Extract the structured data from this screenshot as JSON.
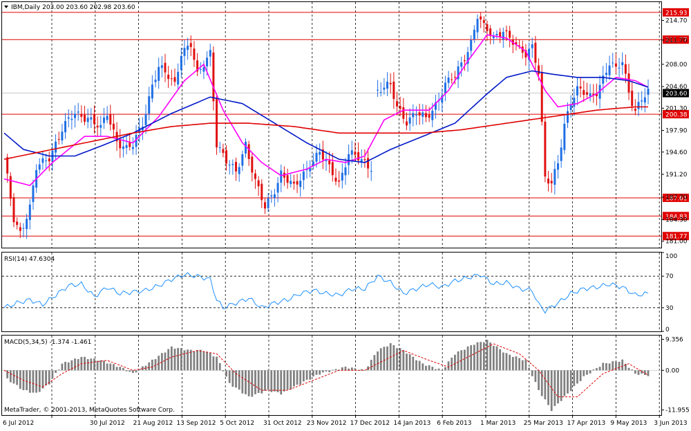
{
  "panels": {
    "price": {
      "header": "IBM,Daily  203.00 203.60 202.98 203.60",
      "range": [
        180.0,
        217.5
      ],
      "ticks": [
        "214.70",
        "211.70",
        "208.00",
        "204.60",
        "201.30",
        "197.90",
        "194.60",
        "191.20",
        "187.70",
        "184.30",
        "181.00"
      ],
      "last_price": "203.60"
    },
    "rsi": {
      "header": "RSI(14) 47.6304",
      "range": [
        0,
        100
      ],
      "ticks": [
        "100",
        "70",
        "30",
        "0"
      ],
      "levels": [
        70,
        30
      ]
    },
    "macd": {
      "header": "MACD(5,34,5) -1.374 -1.461",
      "range": [
        -13.5,
        10.5
      ],
      "ticks": [
        "9.356",
        "0.00",
        "-11.955"
      ]
    }
  },
  "footer": {
    "copyright": "MetaTrader, © 2001-2013, MetaQuotes Software Corp."
  },
  "colors": {
    "bull": "#1f6fe5",
    "bear": "#e01010",
    "ma_fast": "#ff00ff",
    "ma_mid": "#0018c8",
    "ma_slow": "#e00000",
    "level": "#e00000",
    "rsi": "#1e90ff",
    "macd_hist": "#808080",
    "macd_signal": "#e00000",
    "label_bg": "#e00000"
  },
  "chart_data": [
    {
      "type": "candlestick",
      "symbol": "IBM",
      "timeframe": "Daily",
      "header_values": {
        "open": 203.0,
        "high": 203.6,
        "low": 202.98,
        "close": 203.6
      },
      "x_tick_labels": [
        "6 Jul 2012",
        "30 Jul 2012",
        "21 Aug 2012",
        "13 Sep 2012",
        "5 Oct 2012",
        "31 Oct 2012",
        "23 Nov 2012",
        "17 Dec 2012",
        "14 Jan 2013",
        "6 Feb 2013",
        "1 Mar 2013",
        "25 Mar 2013",
        "17 Apr 2013",
        "9 May 2013",
        "3 Jun 2013"
      ],
      "horizontal_levels": [
        "215.93",
        "211.77",
        "200.38",
        "187.61",
        "184.83",
        "181.77"
      ],
      "close_path": [
        [
          0,
          193.5
        ],
        [
          3,
          184.5
        ],
        [
          5,
          182.5
        ],
        [
          8,
          186.0
        ],
        [
          10,
          192.0
        ],
        [
          14,
          194.0
        ],
        [
          18,
          198.0
        ],
        [
          22,
          200.5
        ],
        [
          26,
          200.0
        ],
        [
          30,
          198.0
        ],
        [
          32,
          200.5
        ],
        [
          35,
          196.5
        ],
        [
          38,
          195.0
        ],
        [
          40,
          195.5
        ],
        [
          43,
          199.0
        ],
        [
          46,
          205.0
        ],
        [
          48,
          207.5
        ],
        [
          51,
          206.0
        ],
        [
          53,
          205.0
        ],
        [
          55,
          210.0
        ],
        [
          58,
          211.0
        ],
        [
          60,
          206.0
        ],
        [
          62,
          208.0
        ],
        [
          64,
          210.0
        ],
        [
          66,
          196.0
        ],
        [
          69,
          193.0
        ],
        [
          72,
          191.5
        ],
        [
          75,
          196.0
        ],
        [
          78,
          190.0
        ],
        [
          81,
          186.0
        ],
        [
          84,
          189.0
        ],
        [
          86,
          191.5
        ],
        [
          90,
          189.0
        ],
        [
          92,
          190.5
        ],
        [
          95,
          193.0
        ],
        [
          98,
          194.5
        ],
        [
          101,
          192.0
        ],
        [
          104,
          190.0
        ],
        [
          107,
          194.5
        ],
        [
          110,
          193.5
        ],
        [
          113,
          192.5
        ],
        [
          114,
          192.5
        ],
        [
          116,
          204.0
        ],
        [
          118,
          204.5
        ],
        [
          120,
          204.5
        ],
        [
          122,
          201.5
        ],
        [
          125,
          199.5
        ],
        [
          128,
          200.5
        ],
        [
          131,
          199.5
        ],
        [
          134,
          202.0
        ],
        [
          137,
          205.0
        ],
        [
          140,
          206.0
        ],
        [
          142,
          208.0
        ],
        [
          145,
          211.5
        ],
        [
          147,
          215.5
        ],
        [
          149,
          213.5
        ],
        [
          152,
          212.0
        ],
        [
          155,
          213.5
        ],
        [
          157,
          212.0
        ],
        [
          160,
          210.0
        ],
        [
          162,
          209.5
        ],
        [
          164,
          211.0
        ],
        [
          166,
          207.0
        ],
        [
          168,
          190.5
        ],
        [
          170,
          189.5
        ],
        [
          172,
          193.0
        ],
        [
          174,
          199.0
        ],
        [
          176,
          202.5
        ],
        [
          178,
          204.0
        ],
        [
          180,
          203.5
        ],
        [
          182,
          203.0
        ],
        [
          184,
          204.0
        ],
        [
          186,
          206.0
        ],
        [
          188,
          208.0
        ],
        [
          190,
          207.0
        ],
        [
          192,
          208.5
        ],
        [
          194,
          204.0
        ],
        [
          196,
          201.0
        ],
        [
          198,
          202.5
        ],
        [
          200,
          203.6
        ]
      ],
      "moving_averages": [
        {
          "color": "#ff00ff",
          "path": [
            [
              0,
              190.5
            ],
            [
              8,
              189.5
            ],
            [
              15,
              193.0
            ],
            [
              25,
              197.0
            ],
            [
              32,
              197.0
            ],
            [
              40,
              196.0
            ],
            [
              48,
              200.0
            ],
            [
              56,
              205.5
            ],
            [
              62,
              208.0
            ],
            [
              68,
              201.0
            ],
            [
              74,
              196.0
            ],
            [
              80,
              193.0
            ],
            [
              86,
              191.0
            ],
            [
              94,
              192.0
            ],
            [
              100,
              193.5
            ],
            [
              106,
              193.0
            ],
            [
              112,
              194.0
            ],
            [
              118,
              199.5
            ],
            [
              124,
              201.0
            ],
            [
              132,
              201.0
            ],
            [
              138,
              204.0
            ],
            [
              144,
              208.5
            ],
            [
              150,
              212.5
            ],
            [
              156,
              212.0
            ],
            [
              162,
              210.0
            ],
            [
              168,
              204.0
            ],
            [
              172,
              201.5
            ],
            [
              178,
              202.0
            ],
            [
              184,
              203.5
            ],
            [
              190,
              206.0
            ],
            [
              196,
              205.5
            ],
            [
              200,
              204.5
            ]
          ]
        },
        {
          "color": "#0018c8",
          "path": [
            [
              0,
              197.5
            ],
            [
              6,
              195.0
            ],
            [
              14,
              194.0
            ],
            [
              22,
              194.0
            ],
            [
              30,
              195.5
            ],
            [
              40,
              197.5
            ],
            [
              52,
              200.5
            ],
            [
              64,
              203.0
            ],
            [
              74,
              202.0
            ],
            [
              84,
              199.0
            ],
            [
              94,
              196.0
            ],
            [
              104,
              193.5
            ],
            [
              112,
              193.0
            ],
            [
              120,
              195.0
            ],
            [
              130,
              197.0
            ],
            [
              140,
              199.0
            ],
            [
              150,
              203.5
            ],
            [
              156,
              206.0
            ],
            [
              164,
              207.0
            ],
            [
              170,
              206.5
            ],
            [
              178,
              206.0
            ],
            [
              186,
              206.0
            ],
            [
              194,
              205.5
            ],
            [
              200,
              204.5
            ]
          ]
        },
        {
          "color": "#e00000",
          "path": [
            [
              0,
              193.5
            ],
            [
              10,
              194.5
            ],
            [
              20,
              195.5
            ],
            [
              30,
              196.5
            ],
            [
              40,
              197.5
            ],
            [
              52,
              198.5
            ],
            [
              64,
              199.0
            ],
            [
              76,
              199.0
            ],
            [
              90,
              198.5
            ],
            [
              104,
              197.5
            ],
            [
              118,
              197.5
            ],
            [
              130,
              197.5
            ],
            [
              142,
              198.0
            ],
            [
              156,
              199.0
            ],
            [
              170,
              200.0
            ],
            [
              184,
              201.0
            ],
            [
              196,
              201.5
            ],
            [
              200,
              201.5
            ]
          ]
        }
      ]
    },
    {
      "type": "line",
      "name": "RSI(14)",
      "last_value": 47.6304,
      "ylim": [
        0,
        100
      ],
      "levels": [
        70,
        30
      ],
      "path": [
        [
          0,
          30
        ],
        [
          4,
          36
        ],
        [
          8,
          40
        ],
        [
          12,
          34
        ],
        [
          16,
          46
        ],
        [
          20,
          58
        ],
        [
          24,
          60
        ],
        [
          28,
          44
        ],
        [
          32,
          56
        ],
        [
          36,
          48
        ],
        [
          40,
          50
        ],
        [
          44,
          52
        ],
        [
          48,
          58
        ],
        [
          52,
          66
        ],
        [
          56,
          72
        ],
        [
          60,
          70
        ],
        [
          64,
          66
        ],
        [
          66,
          40
        ],
        [
          68,
          30
        ],
        [
          72,
          36
        ],
        [
          76,
          42
        ],
        [
          80,
          30
        ],
        [
          84,
          36
        ],
        [
          88,
          40
        ],
        [
          92,
          48
        ],
        [
          96,
          52
        ],
        [
          100,
          48
        ],
        [
          104,
          46
        ],
        [
          108,
          54
        ],
        [
          112,
          54
        ],
        [
          116,
          70
        ],
        [
          120,
          62
        ],
        [
          124,
          48
        ],
        [
          128,
          54
        ],
        [
          132,
          60
        ],
        [
          136,
          56
        ],
        [
          140,
          64
        ],
        [
          144,
          68
        ],
        [
          148,
          72
        ],
        [
          152,
          60
        ],
        [
          156,
          62
        ],
        [
          160,
          54
        ],
        [
          164,
          52
        ],
        [
          166,
          34
        ],
        [
          168,
          26
        ],
        [
          172,
          36
        ],
        [
          176,
          48
        ],
        [
          180,
          54
        ],
        [
          184,
          56
        ],
        [
          188,
          60
        ],
        [
          192,
          56
        ],
        [
          196,
          46
        ],
        [
          200,
          48
        ]
      ]
    },
    {
      "type": "bar",
      "name": "MACD(5,34,5)",
      "last_values": {
        "macd": -1.374,
        "signal": -1.461
      },
      "ylim": [
        -13.5,
        10.5
      ],
      "y_ticks": [
        9.356,
        0.0,
        -11.955
      ],
      "histogram_path": [
        [
          0,
          -2
        ],
        [
          6,
          -6
        ],
        [
          10,
          -7
        ],
        [
          14,
          -4
        ],
        [
          18,
          2
        ],
        [
          24,
          4
        ],
        [
          30,
          3
        ],
        [
          36,
          1
        ],
        [
          40,
          -1
        ],
        [
          46,
          3
        ],
        [
          52,
          7
        ],
        [
          58,
          6
        ],
        [
          62,
          6
        ],
        [
          66,
          4
        ],
        [
          70,
          -4
        ],
        [
          76,
          -8
        ],
        [
          82,
          -6
        ],
        [
          86,
          -7
        ],
        [
          92,
          -4
        ],
        [
          98,
          -1
        ],
        [
          102,
          0
        ],
        [
          106,
          1
        ],
        [
          112,
          0
        ],
        [
          116,
          6
        ],
        [
          120,
          8
        ],
        [
          124,
          6
        ],
        [
          130,
          2
        ],
        [
          136,
          0
        ],
        [
          140,
          5
        ],
        [
          146,
          8
        ],
        [
          150,
          9
        ],
        [
          156,
          5
        ],
        [
          162,
          3
        ],
        [
          166,
          -6
        ],
        [
          170,
          -12
        ],
        [
          174,
          -8
        ],
        [
          180,
          -2
        ],
        [
          186,
          2
        ],
        [
          192,
          3
        ],
        [
          196,
          -1
        ],
        [
          200,
          -1.5
        ]
      ],
      "signal_path": [
        [
          0,
          0
        ],
        [
          6,
          -3
        ],
        [
          12,
          -5
        ],
        [
          18,
          -1
        ],
        [
          24,
          2
        ],
        [
          32,
          3
        ],
        [
          40,
          0
        ],
        [
          46,
          1
        ],
        [
          52,
          4
        ],
        [
          60,
          6
        ],
        [
          66,
          5
        ],
        [
          72,
          -1
        ],
        [
          80,
          -6
        ],
        [
          88,
          -6
        ],
        [
          96,
          -3
        ],
        [
          104,
          0
        ],
        [
          112,
          0
        ],
        [
          118,
          3
        ],
        [
          124,
          6
        ],
        [
          132,
          3
        ],
        [
          138,
          1
        ],
        [
          146,
          5
        ],
        [
          152,
          8
        ],
        [
          160,
          5
        ],
        [
          166,
          0
        ],
        [
          172,
          -8
        ],
        [
          178,
          -8
        ],
        [
          186,
          -1
        ],
        [
          194,
          2
        ],
        [
          200,
          -1.46
        ]
      ]
    }
  ]
}
